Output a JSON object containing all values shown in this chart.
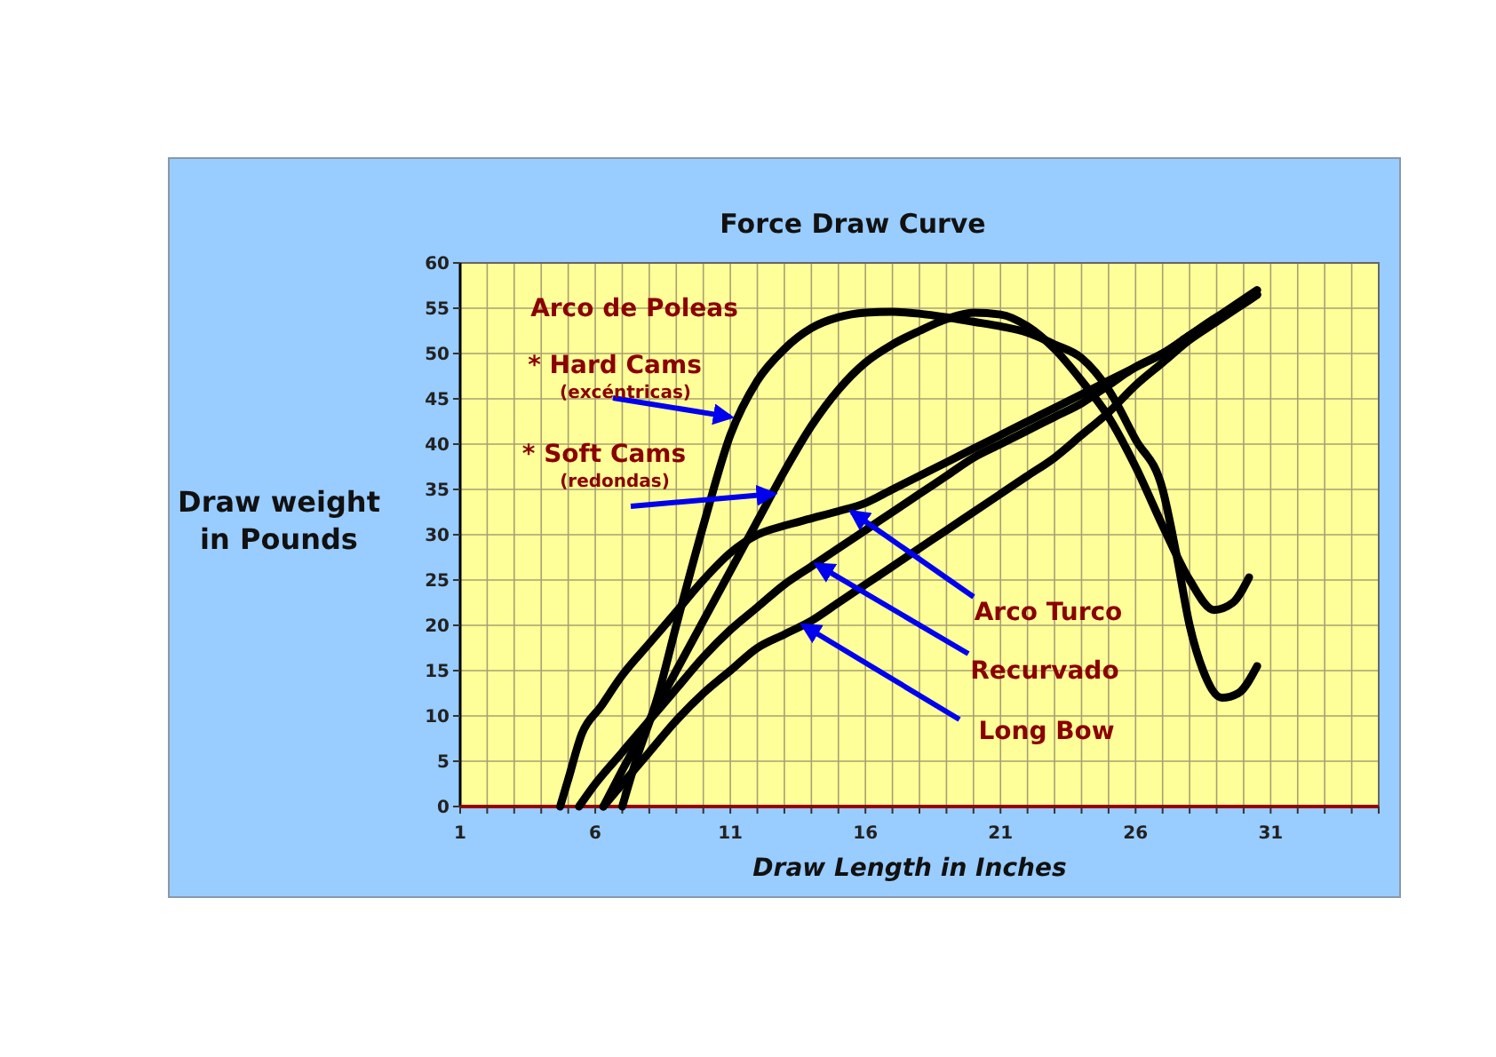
{
  "chart_data": {
    "type": "line",
    "title": "Force Draw Curve",
    "xlabel": "Draw Length in Inches",
    "ylabel": "Draw weight\nin Pounds",
    "xlim": [
      1,
      35
    ],
    "ylim": [
      0,
      60
    ],
    "xticks": [
      1,
      {
        "value": 2,
        "label": null
      },
      {
        "value": 3,
        "label": null
      },
      {
        "value": 4,
        "label": null
      },
      {
        "value": 5,
        "label": null
      },
      6,
      {
        "value": 7,
        "label": null
      },
      {
        "value": 8,
        "label": null
      },
      {
        "value": 9,
        "label": null
      },
      {
        "value": 10,
        "label": null
      },
      11,
      {
        "value": 12,
        "label": null
      },
      {
        "value": 13,
        "label": null
      },
      {
        "value": 14,
        "label": null
      },
      {
        "value": 15,
        "label": null
      },
      16,
      {
        "value": 17,
        "label": null
      },
      {
        "value": 18,
        "label": null
      },
      {
        "value": 19,
        "label": null
      },
      {
        "value": 20,
        "label": null
      },
      21,
      {
        "value": 22,
        "label": null
      },
      {
        "value": 23,
        "label": null
      },
      {
        "value": 24,
        "label": null
      },
      {
        "value": 25,
        "label": null
      },
      26,
      {
        "value": 27,
        "label": null
      },
      {
        "value": 28,
        "label": null
      },
      {
        "value": 29,
        "label": null
      },
      {
        "value": 30,
        "label": null
      },
      31,
      {
        "value": 32,
        "label": null
      },
      {
        "value": 33,
        "label": null
      },
      {
        "value": 34,
        "label": null
      },
      {
        "value": 35,
        "label": null
      }
    ],
    "yticks": [
      0,
      5,
      10,
      15,
      20,
      25,
      30,
      35,
      40,
      45,
      50,
      55,
      60
    ],
    "grid": true,
    "marker": "none",
    "line_style": "solid",
    "series": [
      {
        "color": "#000000",
        "x": [
          7,
          7.5,
          8.3,
          9,
          10,
          11,
          12,
          13,
          14,
          15,
          16,
          17,
          18,
          19,
          20,
          21,
          22,
          23,
          24,
          25,
          26,
          27,
          27.5,
          28,
          28.5,
          29.2,
          29.8,
          30.5
        ],
        "values": [
          0,
          5,
          12,
          20,
          31,
          41,
          47,
          50.5,
          52.8,
          54,
          54.5,
          54.6,
          54.4,
          54,
          53.5,
          53,
          52.3,
          51,
          49.5,
          46,
          40.5,
          35,
          28,
          20,
          15,
          12,
          12.5,
          15.5
        ]
      },
      {
        "color": "#000000",
        "x": [
          6.3,
          7,
          8,
          9,
          10,
          11,
          12,
          13,
          14,
          15,
          16,
          17,
          18,
          19,
          20,
          21,
          22,
          23,
          24,
          25,
          26,
          27,
          28,
          28.9,
          29.6,
          30.2
        ],
        "values": [
          0,
          4,
          9.5,
          15,
          20.5,
          26,
          31.5,
          37,
          42,
          46,
          49,
          51,
          52.5,
          53.8,
          54.5,
          54.3,
          53,
          50.5,
          47,
          43,
          37.5,
          31,
          25,
          21.7,
          22.5,
          25.3
        ]
      },
      {
        "color": "#000000",
        "x": [
          4.7,
          5,
          5.5,
          6.2,
          7,
          8,
          9,
          10,
          11,
          12,
          13,
          14,
          15,
          16,
          17,
          18,
          19,
          20,
          21,
          22,
          23,
          24,
          25,
          26,
          27,
          28,
          29,
          30,
          30.5
        ],
        "values": [
          0,
          3,
          8,
          11,
          14.5,
          18,
          21.5,
          25,
          28,
          30,
          31,
          31.8,
          32.6,
          33.5,
          35,
          36.5,
          38,
          39.5,
          41,
          42.5,
          44,
          45.5,
          47,
          48.5,
          50,
          52,
          54,
          56,
          57
        ]
      },
      {
        "color": "#000000",
        "x": [
          5.4,
          6,
          7,
          8,
          9,
          10,
          11,
          12,
          13,
          14,
          15,
          16,
          17,
          18,
          19,
          20,
          21,
          22,
          23,
          24,
          25,
          26,
          27,
          28,
          29,
          30,
          30.5
        ],
        "values": [
          0,
          2.5,
          6,
          9.5,
          13,
          16.5,
          19.5,
          22,
          24.5,
          26.5,
          28.5,
          30.5,
          32.5,
          34.5,
          36.5,
          38.5,
          40,
          41.5,
          43,
          44.5,
          46.5,
          48.5,
          50,
          52,
          54,
          55.5,
          56.5
        ]
      },
      {
        "color": "#000000",
        "x": [
          6.3,
          7,
          8,
          9,
          10,
          11,
          12,
          13,
          14,
          15,
          16,
          17,
          18,
          19,
          20,
          21,
          22,
          23,
          24,
          25,
          26,
          27,
          28,
          29,
          30,
          30.5
        ],
        "values": [
          0,
          2.5,
          6,
          9.5,
          12.5,
          15,
          17.5,
          19,
          20.5,
          22.5,
          24.5,
          26.5,
          28.5,
          30.5,
          32.5,
          34.5,
          36.5,
          38.5,
          41,
          43.5,
          46.5,
          49,
          51.5,
          53.5,
          55.5,
          56.5
        ]
      }
    ],
    "annotations": [
      "Arco de Poleas",
      {
        "text": "* Hard Cams\n(excéntricas)",
        "x": 11,
        "y": 43
      },
      {
        "text": "* Soft Cams\n(redondas)",
        "x": 12.6,
        "y": 34.5
      },
      {
        "text": "Arco Turco",
        "x": 15.5,
        "y": 32.5
      },
      {
        "text": "Recurvado",
        "x": 14.2,
        "y": 26.7
      },
      {
        "text": "Long Bow",
        "x": 13.7,
        "y": 20
      }
    ]
  }
}
